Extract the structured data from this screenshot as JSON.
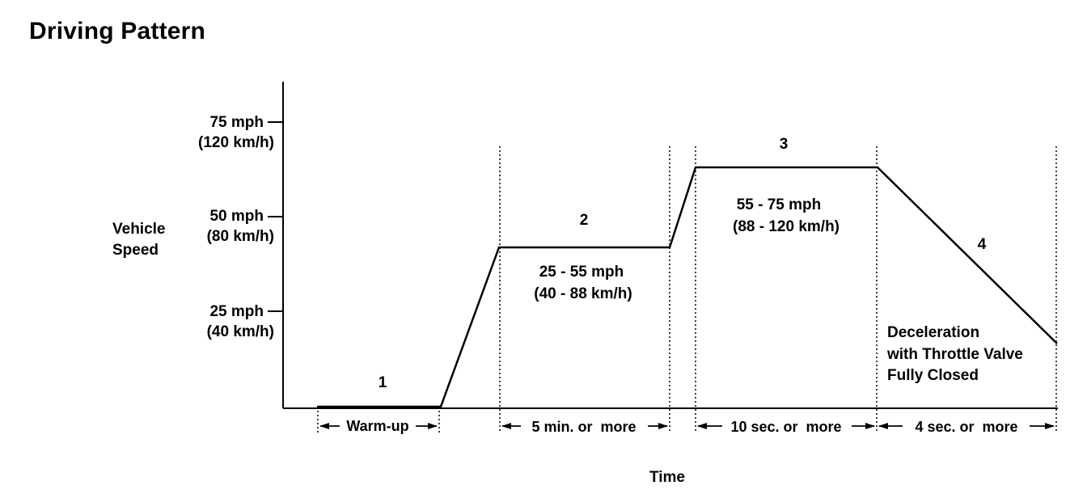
{
  "title": "Driving Pattern",
  "y_axis": {
    "label_line1": "Vehicle",
    "label_line2": "Speed",
    "ticks": [
      {
        "mph": "75 mph",
        "kmh": "(120 km/h)"
      },
      {
        "mph": "50 mph",
        "kmh": "(80 km/h)"
      },
      {
        "mph": "25 mph",
        "kmh": "(40 km/h)"
      }
    ]
  },
  "x_axis": {
    "label": "Time"
  },
  "phases": [
    {
      "number": "1",
      "duration": "Warm-up"
    },
    {
      "number": "2",
      "range_mph": "25 - 55 mph",
      "range_kmh": "(40 - 88 km/h)",
      "duration": "5 min. or  more"
    },
    {
      "number": "3",
      "range_mph": "55 - 75 mph",
      "range_kmh": "(88 - 120 km/h)",
      "duration": "10 sec. or  more"
    },
    {
      "number": "4",
      "note_line1": "Deceleration",
      "note_line2": "with Throttle Valve",
      "note_line3": "Fully Closed",
      "duration": "4 sec. or  more"
    }
  ]
}
